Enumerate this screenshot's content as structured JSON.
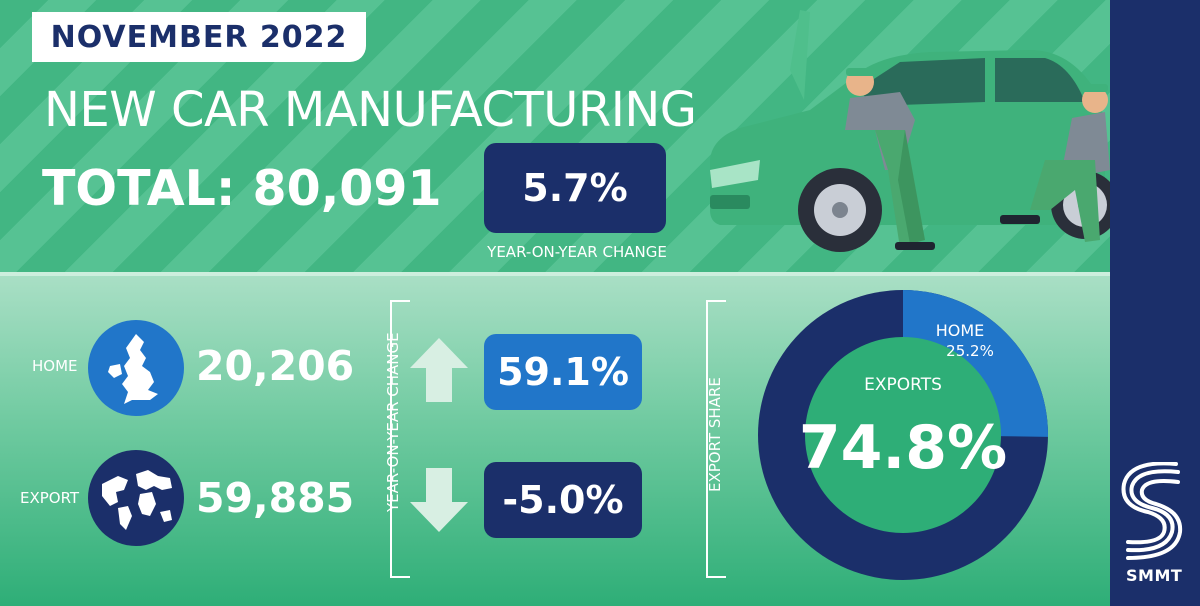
{
  "header": {
    "month": "NOVEMBER 2022",
    "title": "NEW CAR MANUFACTURING",
    "total": "TOTAL: 80,091",
    "yoy_value": "5.7%",
    "yoy_label": "YEAR-ON-YEAR CHANGE"
  },
  "rows": [
    {
      "label": "HOME",
      "value": "20,206",
      "change": "59.1%",
      "direction": "up",
      "icon": "uk-map-icon",
      "box_color": "#2176c9"
    },
    {
      "label": "EXPORT",
      "value": "59,885",
      "change": "-5.0%",
      "direction": "down",
      "icon": "globe-icon",
      "box_color": "#1b2f6a"
    }
  ],
  "section_labels": {
    "yoy": "YEAR-ON-YEAR CHANGE",
    "export_share": "EXPORT SHARE"
  },
  "donut": {
    "home_label": "HOME",
    "home_pct": "25.2%",
    "home_value": 25.2,
    "exports_label": "EXPORTS",
    "exports_pct": "74.8%",
    "exports_value": 74.8,
    "home_color": "#2176c9",
    "exports_color": "#1b2f6a",
    "center_color": "#2eae77"
  },
  "brand": {
    "name": "SMMT"
  },
  "colors": {
    "navy": "#1b2f6a",
    "blue": "#2176c9",
    "green": "#2eae77",
    "arrow": "#d8efe3"
  }
}
